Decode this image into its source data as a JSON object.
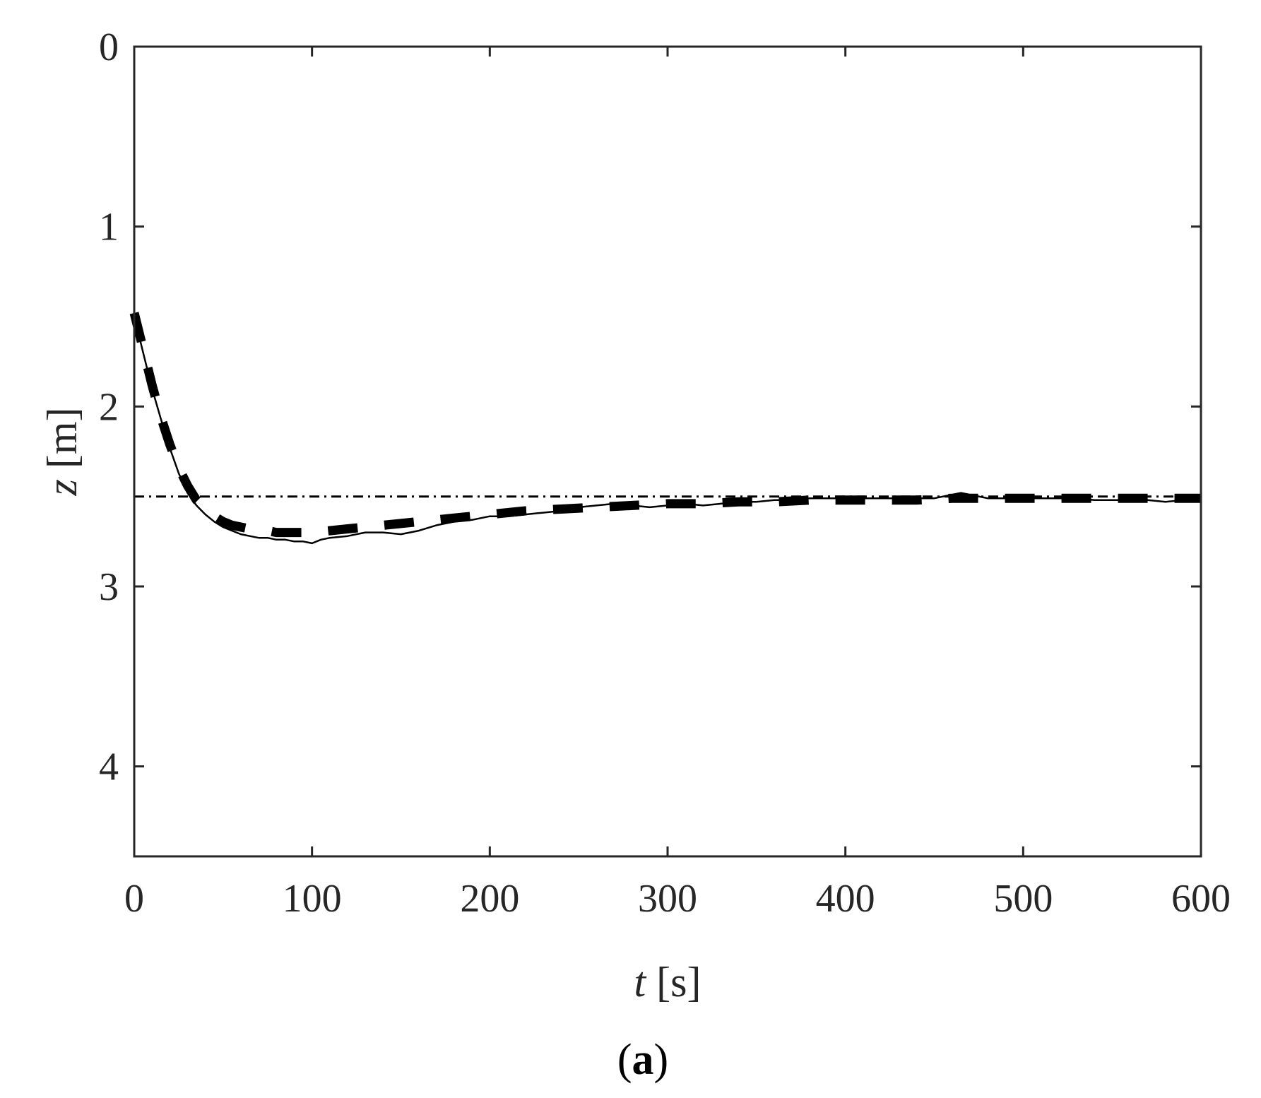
{
  "chart_data": {
    "type": "line",
    "title": "",
    "panel_label": {
      "open": "(",
      "letter": "a",
      "close": ")"
    },
    "xlabel": {
      "var": "t",
      "unit": " [s]"
    },
    "ylabel": {
      "var": "z",
      "unit": " [m]"
    },
    "xlim": [
      0,
      600
    ],
    "ylim": [
      0,
      4.5
    ],
    "y_inverted": true,
    "xticks": [
      0,
      100,
      200,
      300,
      400,
      500,
      600
    ],
    "yticks": [
      0,
      1,
      2,
      3,
      4
    ],
    "xtick_labels": [
      "0",
      "100",
      "200",
      "300",
      "400",
      "500",
      "600"
    ],
    "ytick_labels": [
      "0",
      "1",
      "2",
      "3",
      "4"
    ],
    "grid": false,
    "legend": "none",
    "colors": {
      "axes": "#262626",
      "series": "#000000"
    },
    "series": [
      {
        "style": "solid",
        "x": [
          0,
          5,
          10,
          15,
          20,
          25,
          30,
          35,
          40,
          45,
          50,
          55,
          60,
          65,
          70,
          75,
          80,
          85,
          90,
          95,
          100,
          105,
          110,
          120,
          130,
          140,
          150,
          160,
          170,
          180,
          190,
          200,
          210,
          220,
          230,
          240,
          250,
          260,
          270,
          280,
          290,
          300,
          310,
          320,
          330,
          340,
          350,
          360,
          370,
          380,
          390,
          400,
          410,
          420,
          430,
          440,
          450,
          460,
          465,
          470,
          480,
          490,
          500,
          510,
          520,
          530,
          540,
          550,
          560,
          570,
          580,
          590,
          600
        ],
        "y": [
          1.5,
          1.7,
          1.9,
          2.07,
          2.23,
          2.37,
          2.48,
          2.55,
          2.6,
          2.64,
          2.67,
          2.69,
          2.71,
          2.72,
          2.73,
          2.73,
          2.74,
          2.74,
          2.75,
          2.75,
          2.76,
          2.74,
          2.73,
          2.72,
          2.7,
          2.7,
          2.71,
          2.69,
          2.66,
          2.64,
          2.63,
          2.61,
          2.61,
          2.6,
          2.59,
          2.58,
          2.56,
          2.55,
          2.54,
          2.55,
          2.56,
          2.55,
          2.54,
          2.55,
          2.54,
          2.53,
          2.53,
          2.52,
          2.52,
          2.51,
          2.51,
          2.51,
          2.51,
          2.51,
          2.51,
          2.51,
          2.51,
          2.49,
          2.48,
          2.49,
          2.51,
          2.51,
          2.51,
          2.51,
          2.51,
          2.51,
          2.52,
          2.52,
          2.52,
          2.52,
          2.53,
          2.52,
          2.52
        ]
      },
      {
        "style": "dashed-thick",
        "x": [
          0,
          5,
          10,
          15,
          20,
          25,
          30,
          35,
          40,
          45,
          50,
          55,
          60,
          65,
          70,
          75,
          80,
          90,
          100,
          110,
          120,
          130,
          140,
          150,
          160,
          170,
          180,
          190,
          200,
          220,
          240,
          260,
          280,
          300,
          320,
          340,
          360,
          380,
          400,
          420,
          440,
          460,
          480,
          500,
          520,
          540,
          560,
          580,
          600
        ],
        "y": [
          1.48,
          1.68,
          1.88,
          2.06,
          2.21,
          2.34,
          2.44,
          2.52,
          2.57,
          2.61,
          2.64,
          2.66,
          2.67,
          2.68,
          2.69,
          2.69,
          2.7,
          2.7,
          2.7,
          2.69,
          2.68,
          2.67,
          2.66,
          2.65,
          2.64,
          2.63,
          2.62,
          2.61,
          2.6,
          2.58,
          2.57,
          2.56,
          2.55,
          2.54,
          2.54,
          2.53,
          2.53,
          2.52,
          2.52,
          2.52,
          2.52,
          2.51,
          2.51,
          2.51,
          2.51,
          2.51,
          2.51,
          2.51,
          2.51
        ]
      },
      {
        "style": "dash-dot",
        "x": [
          0,
          600
        ],
        "y": [
          2.5,
          2.5
        ]
      }
    ]
  }
}
